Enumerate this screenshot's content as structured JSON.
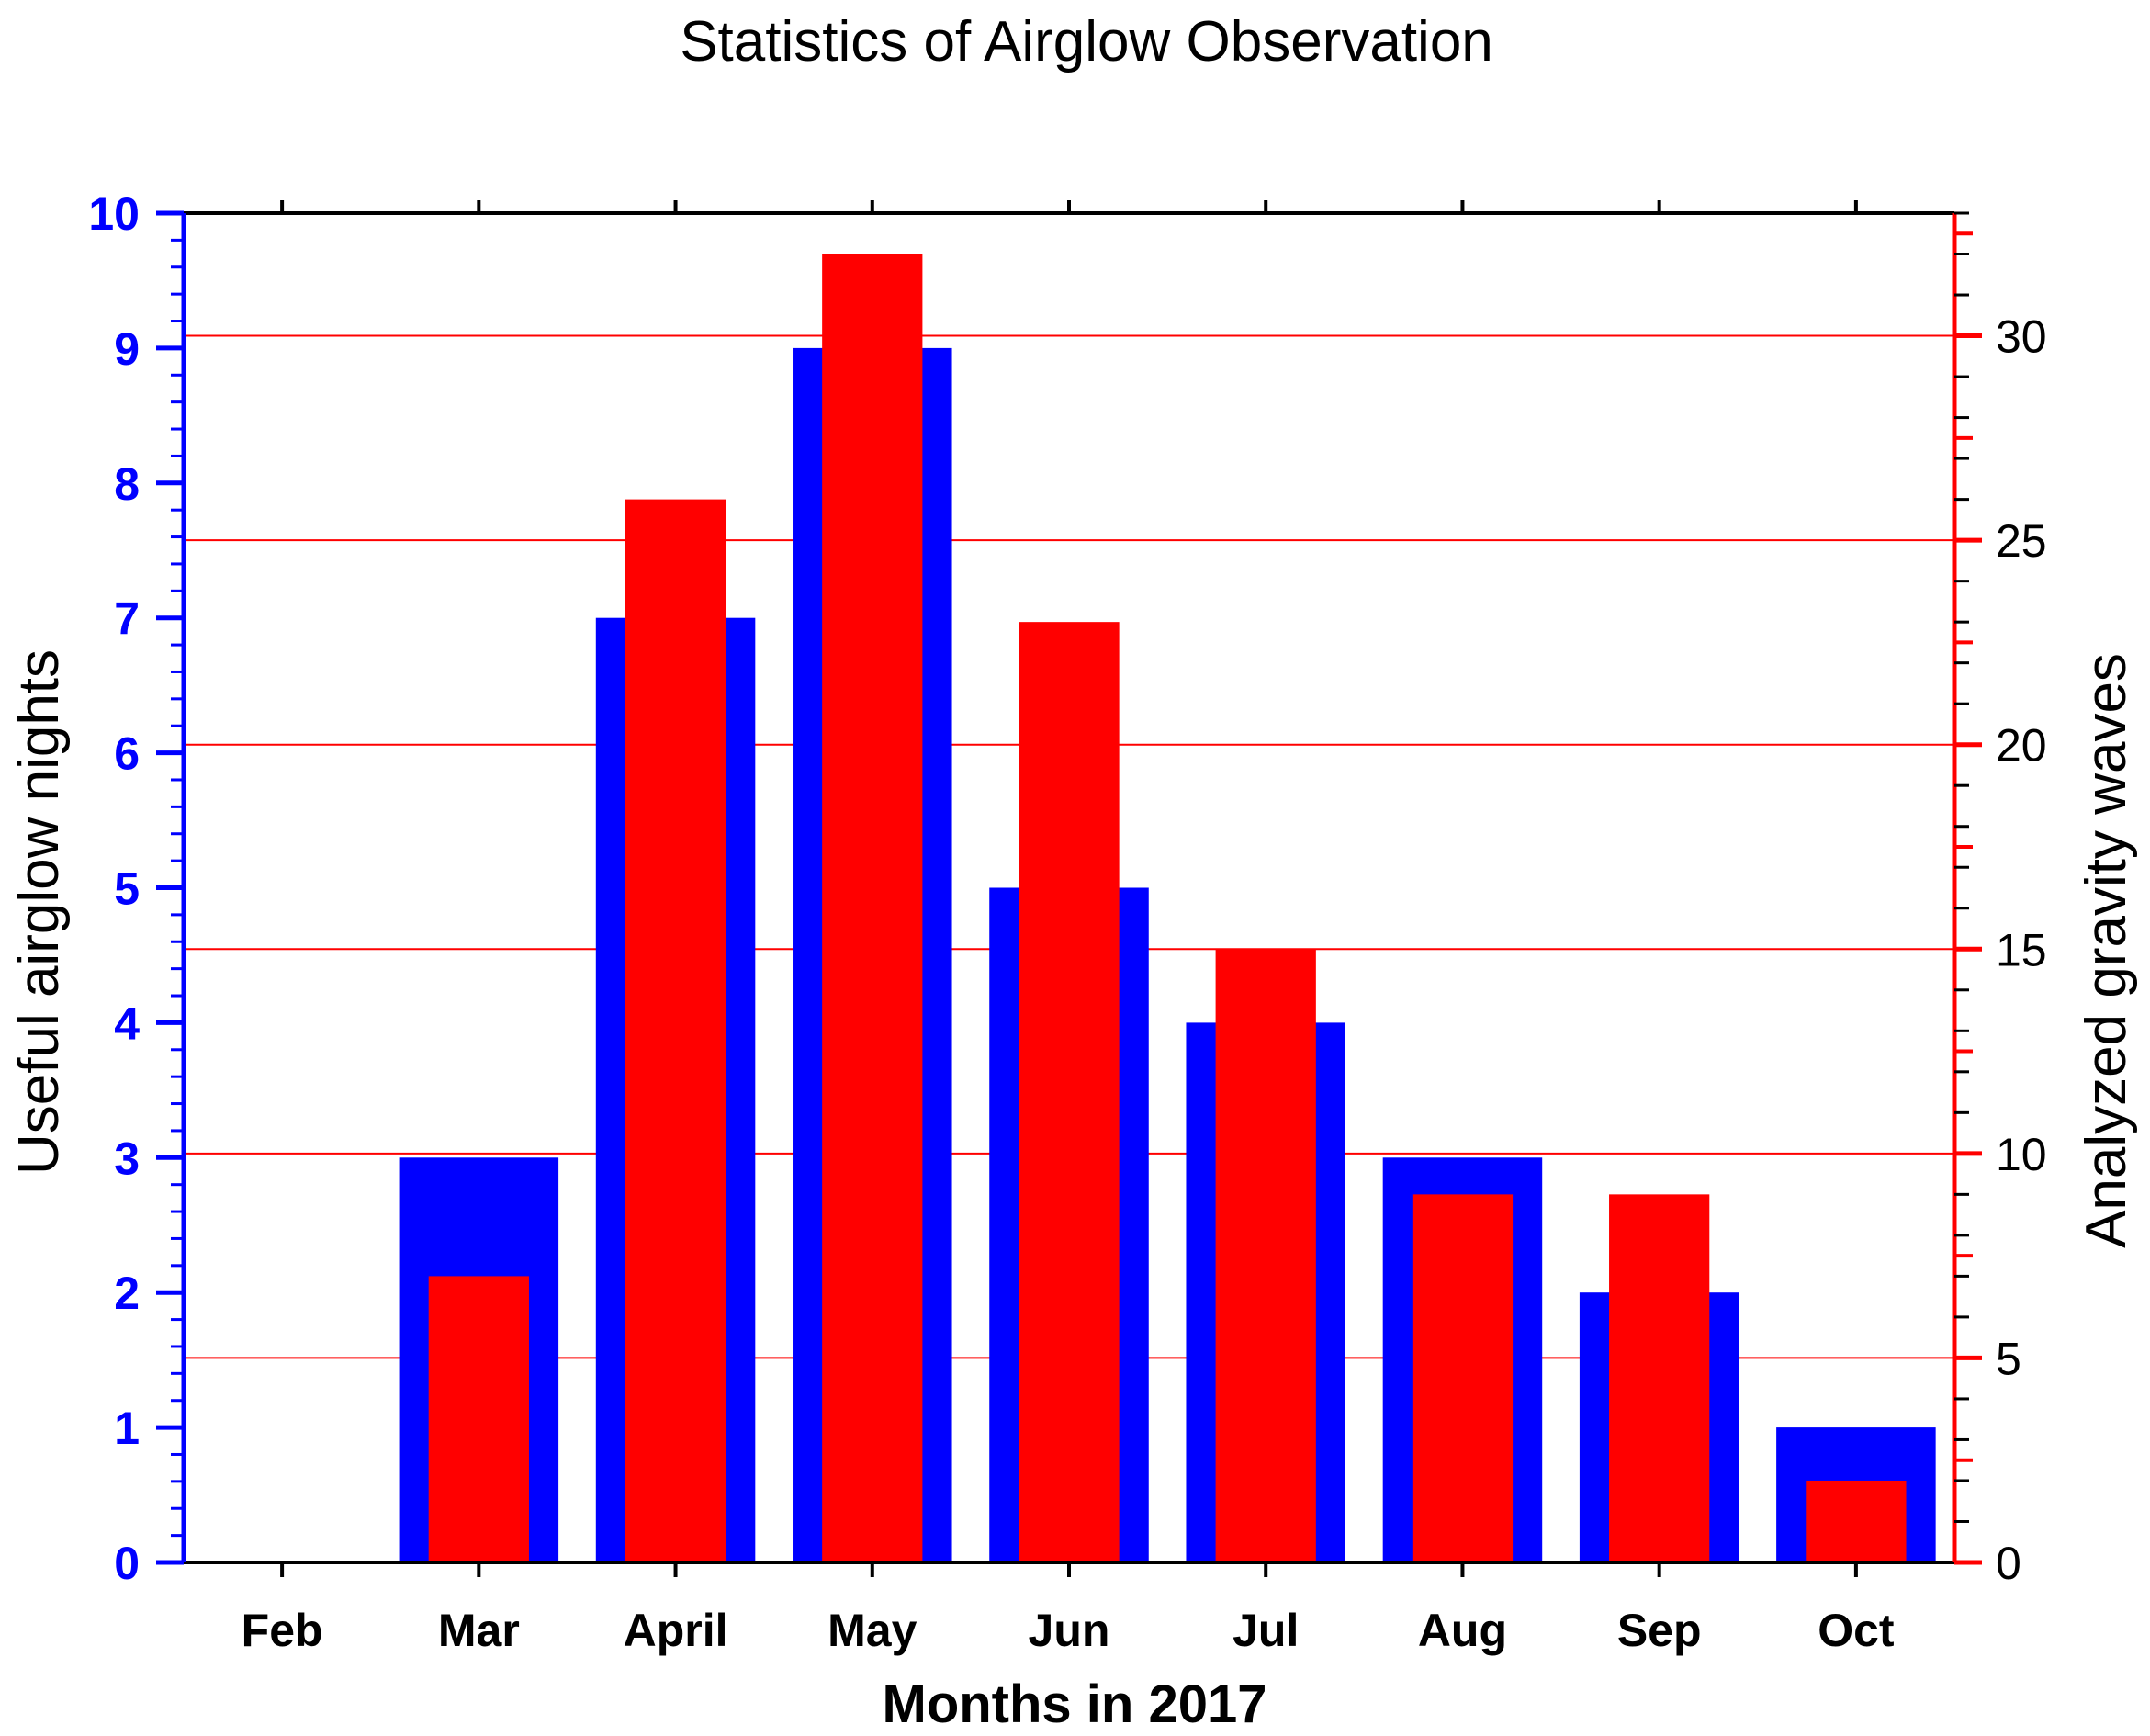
{
  "colors": {
    "left_axis": "#0000ff",
    "right_axis": "#ff0000",
    "series_nights": "#0000ff",
    "series_waves": "#ff0000",
    "gridline": "#ff0000",
    "axis_frame": "#000000"
  },
  "chart_data": {
    "type": "bar",
    "title": "Statistics of Airglow Observation",
    "xlabel": "Months in 2017",
    "ylabel_left": "Useful airglow nights",
    "ylabel_right": "Analyzed gravity waves",
    "categories": [
      "Feb",
      "Mar",
      "April",
      "May",
      "Jun",
      "Jul",
      "Aug",
      "Sep",
      "Oct"
    ],
    "series": [
      {
        "name": "Useful airglow nights",
        "axis": "left",
        "values": [
          0,
          3,
          7,
          9,
          5,
          4,
          3,
          2,
          1
        ]
      },
      {
        "name": "Analyzed gravity waves",
        "axis": "right",
        "values": [
          0,
          7,
          26,
          32,
          23,
          15,
          9,
          9,
          2
        ]
      }
    ],
    "ylim_left": [
      0,
      10
    ],
    "yticks_left": [
      0,
      1,
      2,
      3,
      4,
      5,
      6,
      7,
      8,
      9,
      10
    ],
    "ylim_right": [
      0,
      33
    ],
    "yticks_right": [
      0,
      5,
      10,
      15,
      20,
      25,
      30
    ],
    "grid": "horizontal lines at right-axis major ticks"
  }
}
